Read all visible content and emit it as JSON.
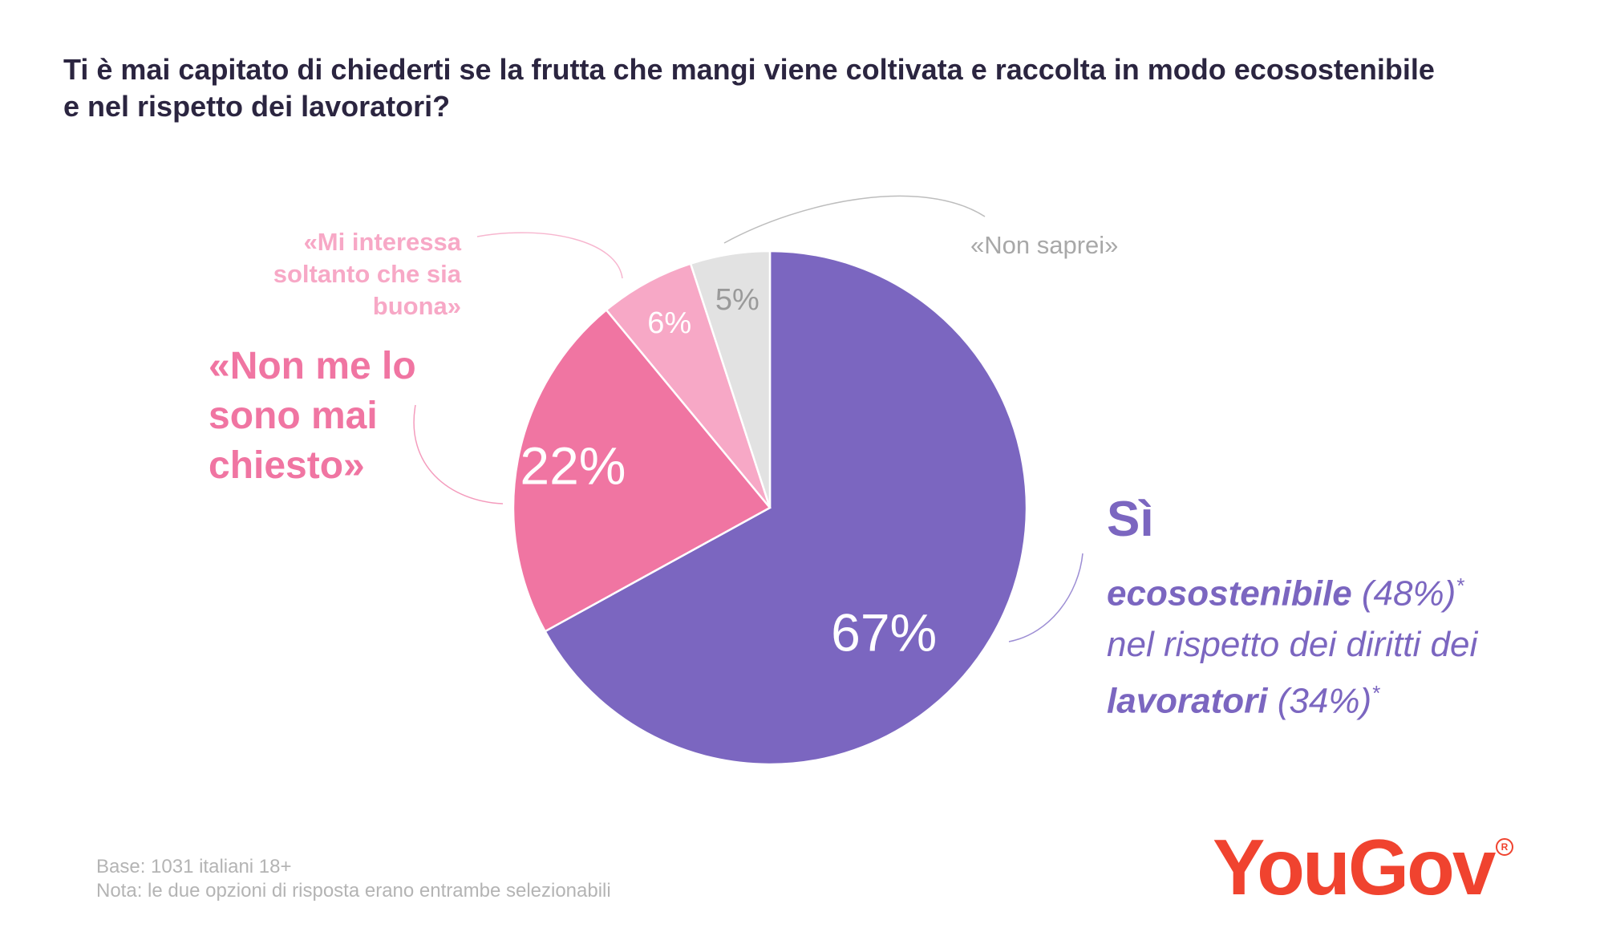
{
  "title": {
    "line1": "Ti è mai capitato di chiederti se la frutta che mangi viene coltivata e raccolta in modo ecosostenibile",
    "line2": "e nel rispetto dei lavoratori?"
  },
  "chart_data": {
    "type": "pie",
    "start_angle_deg": 0,
    "direction": "clockwise",
    "slices": [
      {
        "label": "Sì",
        "value": 67,
        "value_label": "67%",
        "color": "#7b66c0",
        "label_color": "#ffffff"
      },
      {
        "label": "«Non me lo sono mai chiesto»",
        "value": 22,
        "value_label": "22%",
        "color": "#f075a2",
        "label_color": "#ffffff"
      },
      {
        "label": "«Mi interessa soltanto che sia buona»",
        "value": 6,
        "value_label": "6%",
        "color": "#f7a8c6",
        "label_color": "#ffffff"
      },
      {
        "label": "«Non saprei»",
        "value": 5,
        "value_label": "5%",
        "color": "#e2e2e2",
        "label_color": "#9a9a9a"
      }
    ]
  },
  "labels": {
    "non_me_lo": [
      "«Non me lo",
      "sono mai",
      "chiesto»"
    ],
    "mi_interessa": [
      "«Mi interessa",
      "soltanto che sia",
      "buona»"
    ],
    "non_saprei": "«Non saprei»",
    "si": {
      "head": "Sì",
      "eco_bold": "ecosostenibile",
      "eco_pct": "(48%)",
      "asterisk": "*",
      "rispetto": "nel rispetto dei diritti dei",
      "lavoratori_bold": "lavoratori",
      "lavoratori_pct": "(34%)"
    }
  },
  "footer": {
    "base": "Base: 1031 italiani 18+",
    "nota": "Nota: le due opzioni di risposta erano entrambe selezionabili"
  },
  "brand": {
    "logo": "YouGov",
    "reg": "R",
    "color": "#f0432f"
  }
}
